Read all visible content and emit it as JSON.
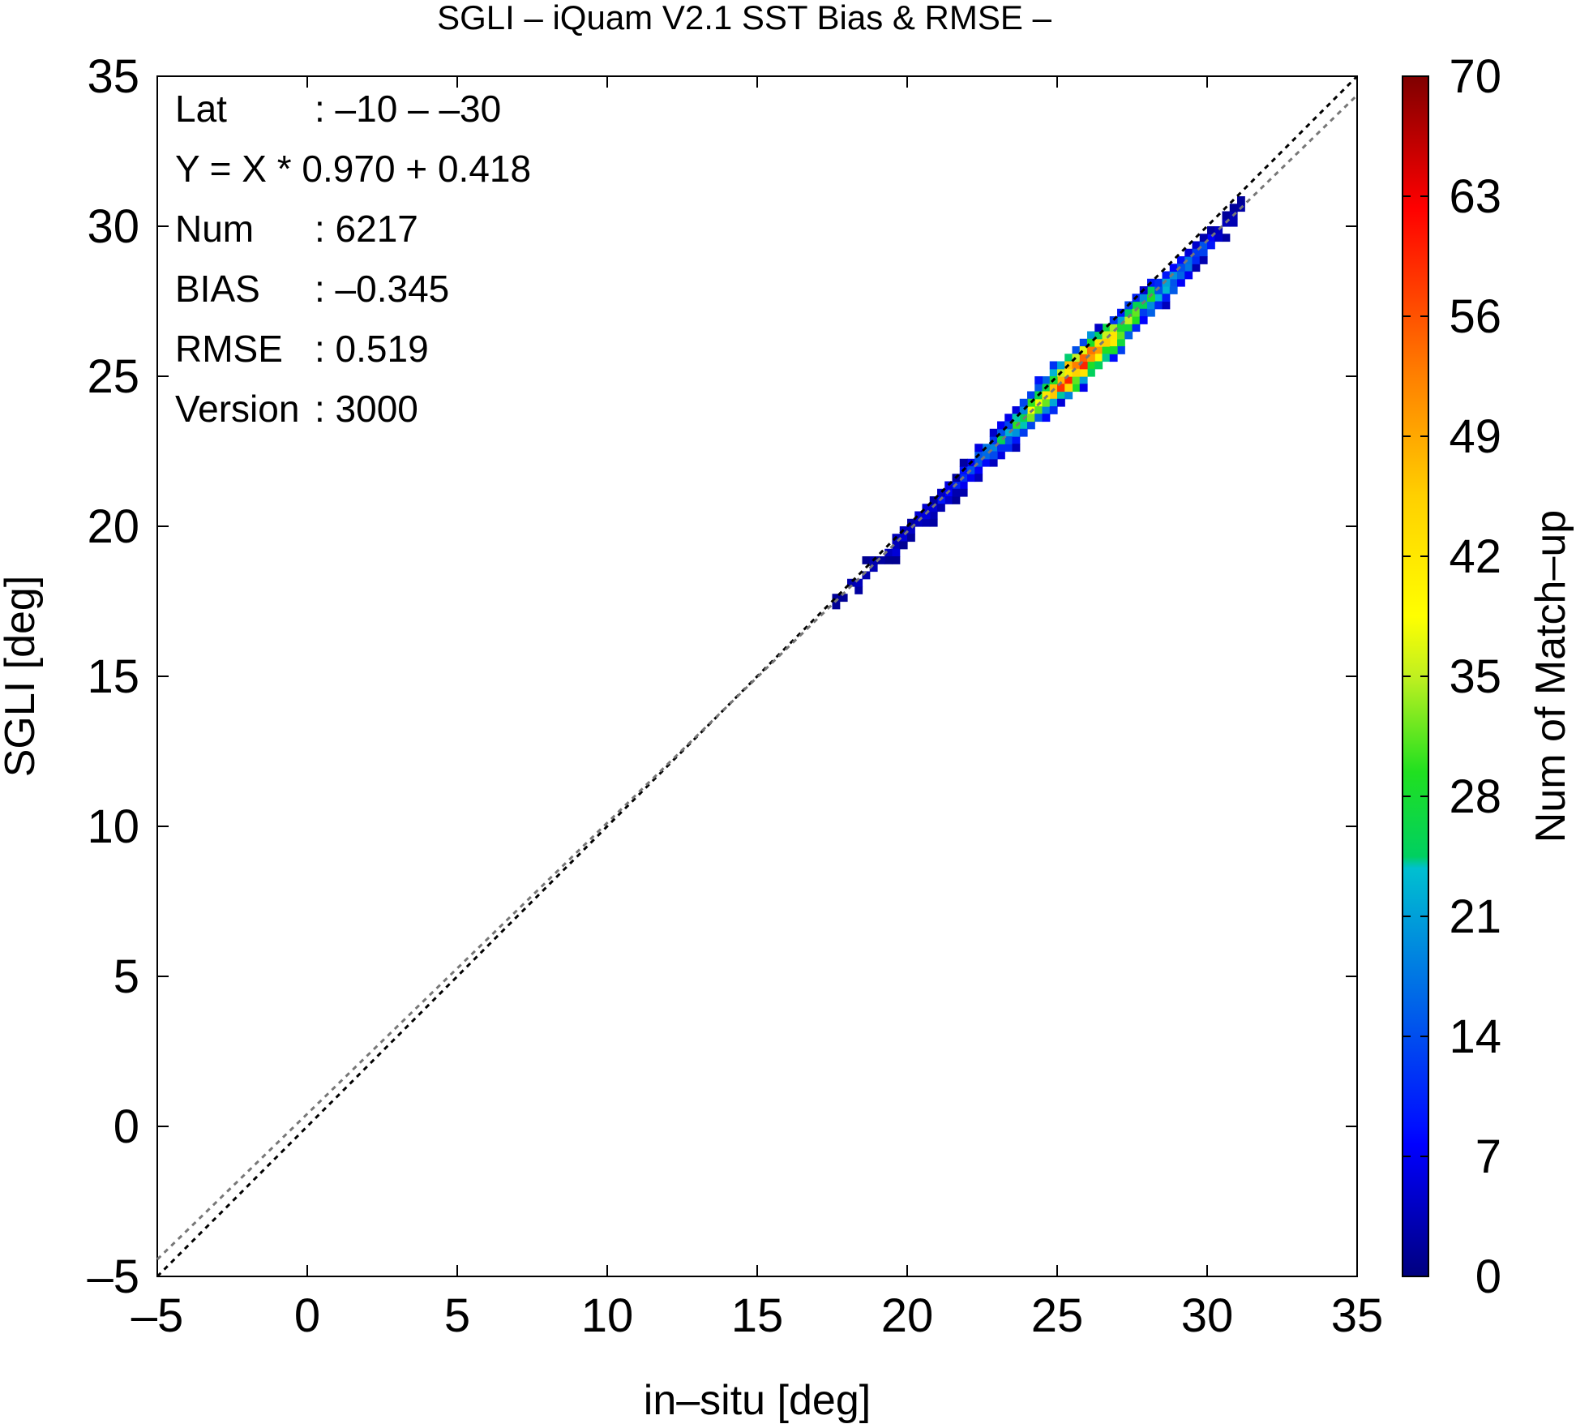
{
  "chart_data": {
    "type": "heatmap",
    "title": "SGLI – iQuam V2.1 SST Bias & RMSE  –",
    "xlabel": "in–situ [deg]",
    "ylabel": "SGLI [deg]",
    "colorbar_label": "Num of Match–up",
    "xlim": [
      -5,
      35
    ],
    "ylim": [
      -5,
      35
    ],
    "x_ticks": [
      "–5",
      "0",
      "5",
      "10",
      "15",
      "20",
      "25",
      "30",
      "35"
    ],
    "y_ticks": [
      "–5",
      "0",
      "5",
      "10",
      "15",
      "20",
      "25",
      "30",
      "35"
    ],
    "colorbar_range": [
      0,
      70
    ],
    "colorbar_ticks": [
      "0",
      "7",
      "14",
      "21",
      "28",
      "35",
      "42",
      "49",
      "56",
      "63",
      "70"
    ],
    "grid": false,
    "stats": [
      {
        "key": "Lat",
        "value": ": –10 – –30"
      },
      {
        "key": "Y = X * 0.970 + 0.418",
        "value": ""
      },
      {
        "key": "Num",
        "value": ": 6217"
      },
      {
        "key": "BIAS",
        "value": ": –0.345"
      },
      {
        "key": "RMSE",
        "value": ": 0.519"
      },
      {
        "key": "Version",
        "value": ": 3000"
      }
    ],
    "lines": [
      {
        "style": "dotted",
        "color": "#000000",
        "slope": 1.0,
        "intercept": 0.0
      },
      {
        "style": "dotted",
        "color": "#777777",
        "slope": 0.97,
        "intercept": 0.418
      }
    ],
    "density_centers": [
      [
        18.0,
        17.8,
        3
      ],
      [
        18.5,
        18.3,
        4
      ],
      [
        19.2,
        19.1,
        5
      ],
      [
        19.8,
        19.5,
        6
      ],
      [
        20.5,
        20.2,
        6
      ],
      [
        21.0,
        20.7,
        8
      ],
      [
        21.5,
        21.2,
        9
      ],
      [
        22.0,
        21.7,
        12
      ],
      [
        22.5,
        22.2,
        16
      ],
      [
        23.0,
        22.7,
        22
      ],
      [
        23.5,
        23.2,
        26
      ],
      [
        24.0,
        23.7,
        30
      ],
      [
        24.5,
        24.2,
        38
      ],
      [
        25.0,
        24.7,
        48
      ],
      [
        25.5,
        25.1,
        58
      ],
      [
        26.0,
        25.6,
        52
      ],
      [
        26.5,
        26.0,
        48
      ],
      [
        27.0,
        26.5,
        36
      ],
      [
        27.5,
        27.0,
        30
      ],
      [
        28.0,
        27.5,
        28
      ],
      [
        28.5,
        27.9,
        24
      ],
      [
        29.0,
        28.4,
        18
      ],
      [
        29.5,
        28.9,
        14
      ],
      [
        30.0,
        29.4,
        9
      ],
      [
        30.5,
        29.9,
        5
      ],
      [
        31.0,
        30.5,
        3
      ]
    ]
  }
}
